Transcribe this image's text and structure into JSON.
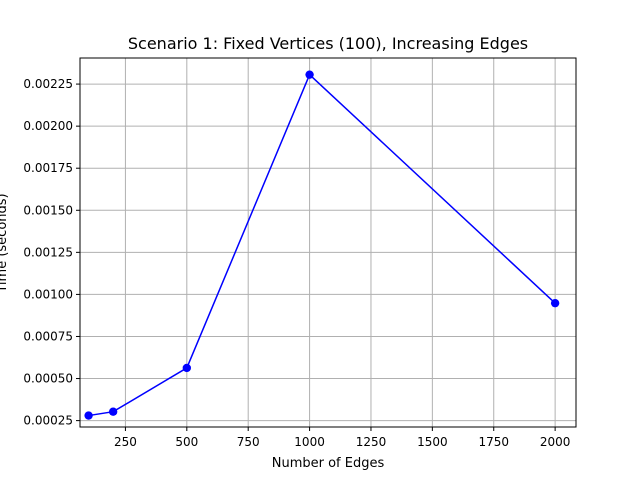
{
  "chart_data": {
    "type": "line",
    "title": "Scenario 1: Fixed Vertices (100), Increasing Edges",
    "xlabel": "Number of Edges",
    "ylabel": "Time (seconds)",
    "xlim": [
      65,
      2085
    ],
    "ylim": [
      0.000212,
      0.002405
    ],
    "xticks": [
      250,
      500,
      750,
      1000,
      1250,
      1500,
      1750,
      2000
    ],
    "xtick_labels": [
      "250",
      "500",
      "750",
      "1000",
      "1250",
      "1500",
      "1750",
      "2000"
    ],
    "yticks": [
      0.00025,
      0.0005,
      0.00075,
      0.001,
      0.00125,
      0.0015,
      0.00175,
      0.002,
      0.00225
    ],
    "ytick_labels": [
      "0.00025",
      "0.00050",
      "0.00075",
      "0.00100",
      "0.00125",
      "0.00150",
      "0.00175",
      "0.00200",
      "0.00225"
    ],
    "grid": true,
    "series": [
      {
        "x": [
          100,
          200,
          500,
          1000,
          2000
        ],
        "y": [
          0.00028,
          0.000303,
          0.000563,
          0.002306,
          0.000948
        ],
        "color": "#0000ff",
        "marker": "circle"
      }
    ]
  }
}
